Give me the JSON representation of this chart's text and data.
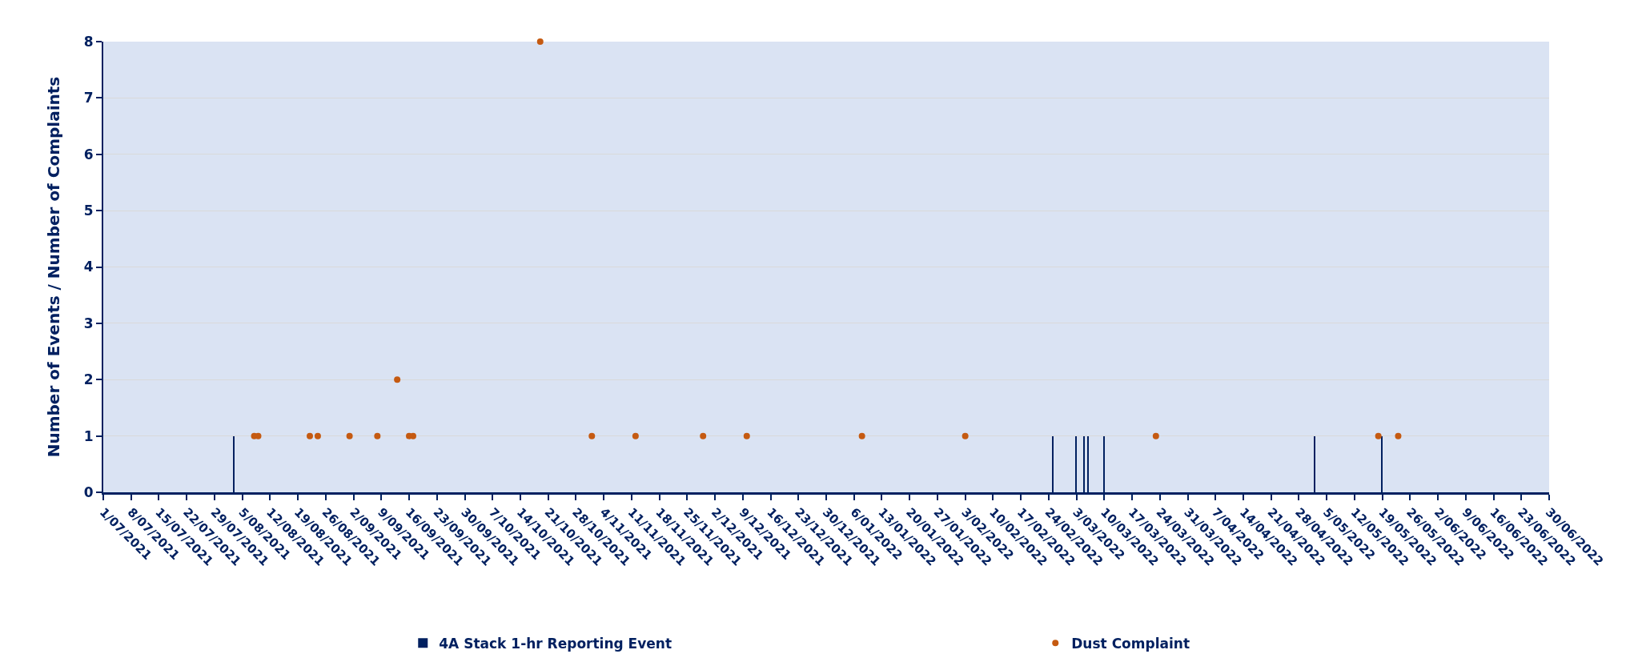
{
  "chart_data": {
    "type": "bar",
    "ylabel": "Number of Events / Number of Complaints",
    "xlim": [
      "2021-07-01",
      "2022-06-30"
    ],
    "xticks": [
      {
        "value": "2021-07-01",
        "label": "1/07/2021"
      },
      {
        "value": "2021-07-08",
        "label": "8/07/2021"
      },
      {
        "value": "2021-07-15",
        "label": "15/07/2021"
      },
      {
        "value": "2021-07-22",
        "label": "22/07/2021"
      },
      {
        "value": "2021-07-29",
        "label": "29/07/2021"
      },
      {
        "value": "2021-08-05",
        "label": "5/08/2021"
      },
      {
        "value": "2021-08-12",
        "label": "12/08/2021"
      },
      {
        "value": "2021-08-19",
        "label": "19/08/2021"
      },
      {
        "value": "2021-08-26",
        "label": "26/08/2021"
      },
      {
        "value": "2021-09-02",
        "label": "2/09/2021"
      },
      {
        "value": "2021-09-09",
        "label": "9/09/2021"
      },
      {
        "value": "2021-09-16",
        "label": "16/09/2021"
      },
      {
        "value": "2021-09-23",
        "label": "23/09/2021"
      },
      {
        "value": "2021-09-30",
        "label": "30/09/2021"
      },
      {
        "value": "2021-10-07",
        "label": "7/10/2021"
      },
      {
        "value": "2021-10-14",
        "label": "14/10/2021"
      },
      {
        "value": "2021-10-21",
        "label": "21/10/2021"
      },
      {
        "value": "2021-10-28",
        "label": "28/10/2021"
      },
      {
        "value": "2021-11-04",
        "label": "4/11/2021"
      },
      {
        "value": "2021-11-11",
        "label": "11/11/2021"
      },
      {
        "value": "2021-11-18",
        "label": "18/11/2021"
      },
      {
        "value": "2021-11-25",
        "label": "25/11/2021"
      },
      {
        "value": "2021-12-02",
        "label": "2/12/2021"
      },
      {
        "value": "2021-12-09",
        "label": "9/12/2021"
      },
      {
        "value": "2021-12-16",
        "label": "16/12/2021"
      },
      {
        "value": "2021-12-23",
        "label": "23/12/2021"
      },
      {
        "value": "2021-12-30",
        "label": "30/12/2021"
      },
      {
        "value": "2022-01-06",
        "label": "6/01/2022"
      },
      {
        "value": "2022-01-13",
        "label": "13/01/2022"
      },
      {
        "value": "2022-01-20",
        "label": "20/01/2022"
      },
      {
        "value": "2022-01-27",
        "label": "27/01/2022"
      },
      {
        "value": "2022-02-03",
        "label": "3/02/2022"
      },
      {
        "value": "2022-02-10",
        "label": "10/02/2022"
      },
      {
        "value": "2022-02-17",
        "label": "17/02/2022"
      },
      {
        "value": "2022-02-24",
        "label": "24/02/2022"
      },
      {
        "value": "2022-03-03",
        "label": "3/03/2022"
      },
      {
        "value": "2022-03-10",
        "label": "10/03/2022"
      },
      {
        "value": "2022-03-17",
        "label": "17/03/2022"
      },
      {
        "value": "2022-03-24",
        "label": "24/03/2022"
      },
      {
        "value": "2022-03-31",
        "label": "31/03/2022"
      },
      {
        "value": "2022-04-07",
        "label": "7/04/2022"
      },
      {
        "value": "2022-04-14",
        "label": "14/04/2022"
      },
      {
        "value": "2022-04-21",
        "label": "21/04/2022"
      },
      {
        "value": "2022-04-28",
        "label": "28/04/2022"
      },
      {
        "value": "2022-05-05",
        "label": "5/05/2022"
      },
      {
        "value": "2022-05-12",
        "label": "12/05/2022"
      },
      {
        "value": "2022-05-19",
        "label": "19/05/2022"
      },
      {
        "value": "2022-05-26",
        "label": "26/05/2022"
      },
      {
        "value": "2022-06-02",
        "label": "2/06/2022"
      },
      {
        "value": "2022-06-09",
        "label": "9/06/2022"
      },
      {
        "value": "2022-06-16",
        "label": "16/06/2022"
      },
      {
        "value": "2022-06-23",
        "label": "23/06/2022"
      },
      {
        "value": "2022-06-30",
        "label": "30/06/2022"
      }
    ],
    "ylim": [
      0,
      8
    ],
    "yticks": [
      0,
      1,
      2,
      3,
      4,
      5,
      6,
      7,
      8
    ],
    "grid": "y",
    "legend": "bottom",
    "series": [
      {
        "name": "4A Stack 1-hr Reporting Event",
        "color": "#002060",
        "x": [
          "2021-08-03",
          "2022-02-25",
          "2022-03-03",
          "2022-03-05",
          "2022-03-06",
          "2022-03-10",
          "2022-05-02",
          "2022-05-19"
        ],
        "values": [
          1,
          1,
          1,
          1,
          1,
          1,
          1,
          1
        ]
      },
      {
        "name": "Dust Complaint",
        "type": "scatter",
        "marker": "circle",
        "color": "#c55a11",
        "x": [
          "2021-08-08",
          "2021-08-09",
          "2021-08-22",
          "2021-08-24",
          "2021-09-01",
          "2021-09-08",
          "2021-09-13",
          "2021-09-16",
          "2021-09-17",
          "2021-10-19",
          "2021-11-01",
          "2021-11-12",
          "2021-11-29",
          "2021-12-10",
          "2022-01-08",
          "2022-02-03",
          "2022-03-23",
          "2022-05-18",
          "2022-05-23"
        ],
        "values": [
          1,
          1,
          1,
          1,
          1,
          1,
          2,
          1,
          1,
          8,
          1,
          1,
          1,
          1,
          1,
          1,
          1,
          1,
          1
        ]
      }
    ]
  }
}
